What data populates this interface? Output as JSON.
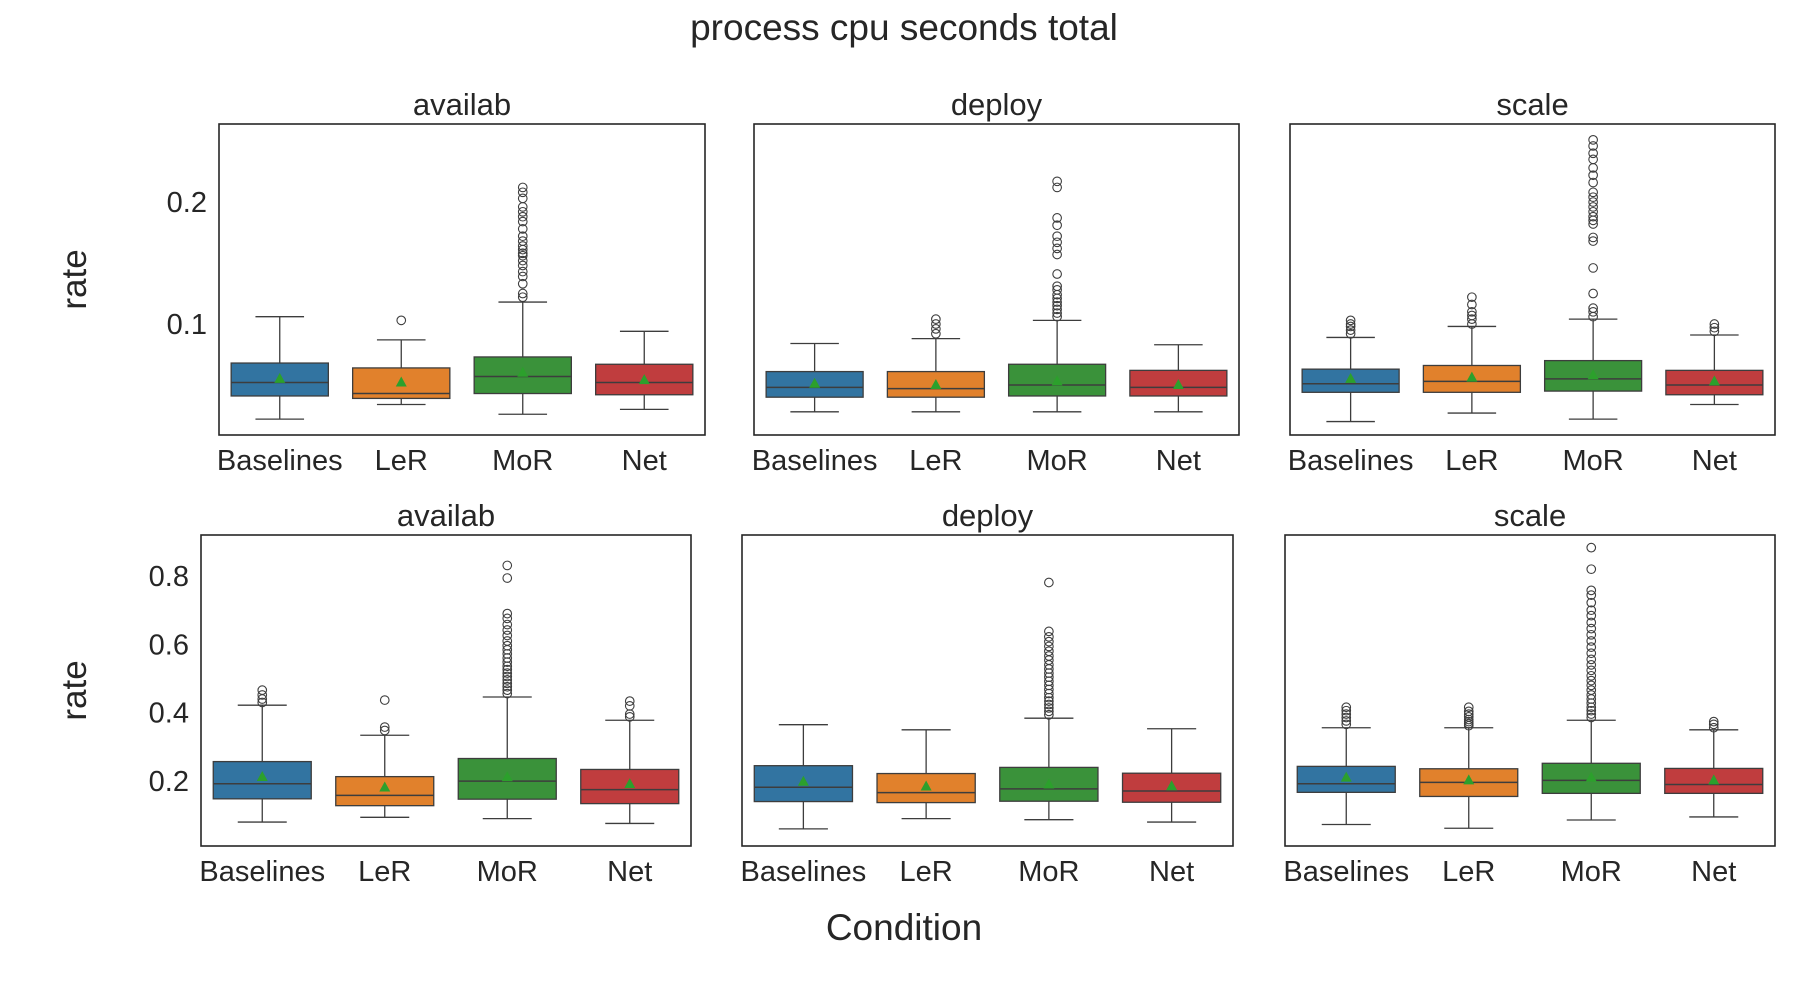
{
  "title": "process cpu seconds total",
  "xlabel": "Condition",
  "colors": {
    "Baselines": "#3274a1",
    "LeR": "#e1812c",
    "MoR": "#3a923a",
    "Net": "#c03d3e",
    "mean_marker": "#2ca02c",
    "median": "#3d3d3d",
    "frame": "#262626"
  },
  "chart_data": [
    {
      "type": "box",
      "row": 0,
      "col": 0,
      "title": "availab",
      "ylabel": "rate",
      "categories": [
        "Baselines",
        "LeR",
        "MoR",
        "Net"
      ],
      "ylim": [
        0.009,
        0.264
      ],
      "yticks": [
        0.1,
        0.2
      ],
      "boxes": [
        {
          "whislo": 0.022,
          "q1": 0.041,
          "med": 0.052,
          "q3": 0.068,
          "whishi": 0.106,
          "mean": 0.055,
          "fliers": []
        },
        {
          "whislo": 0.034,
          "q1": 0.039,
          "med": 0.043,
          "q3": 0.064,
          "whishi": 0.087,
          "mean": 0.052,
          "fliers": [
            0.103
          ]
        },
        {
          "whislo": 0.026,
          "q1": 0.043,
          "med": 0.057,
          "q3": 0.073,
          "whishi": 0.118,
          "mean": 0.06,
          "fliers": [
            0.122,
            0.125,
            0.133,
            0.139,
            0.143,
            0.148,
            0.152,
            0.156,
            0.158,
            0.161,
            0.164,
            0.168,
            0.172,
            0.178,
            0.184,
            0.188,
            0.192,
            0.196,
            0.203,
            0.208,
            0.212
          ]
        },
        {
          "whislo": 0.03,
          "q1": 0.042,
          "med": 0.052,
          "q3": 0.067,
          "whishi": 0.094,
          "mean": 0.054,
          "fliers": []
        }
      ]
    },
    {
      "type": "box",
      "row": 0,
      "col": 1,
      "title": "deploy",
      "ylabel": "",
      "categories": [
        "Baselines",
        "LeR",
        "MoR",
        "Net"
      ],
      "ylim": [
        0.009,
        0.264
      ],
      "yticks": [],
      "boxes": [
        {
          "whislo": 0.028,
          "q1": 0.04,
          "med": 0.048,
          "q3": 0.061,
          "whishi": 0.084,
          "mean": 0.051,
          "fliers": []
        },
        {
          "whislo": 0.028,
          "q1": 0.04,
          "med": 0.047,
          "q3": 0.061,
          "whishi": 0.088,
          "mean": 0.05,
          "fliers": [
            0.092,
            0.096,
            0.1,
            0.104
          ]
        },
        {
          "whislo": 0.028,
          "q1": 0.041,
          "med": 0.05,
          "q3": 0.067,
          "whishi": 0.103,
          "mean": 0.053,
          "fliers": [
            0.106,
            0.109,
            0.112,
            0.115,
            0.118,
            0.121,
            0.124,
            0.128,
            0.131,
            0.141,
            0.157,
            0.162,
            0.167,
            0.172,
            0.181,
            0.187,
            0.212,
            0.217
          ]
        },
        {
          "whislo": 0.028,
          "q1": 0.041,
          "med": 0.048,
          "q3": 0.062,
          "whishi": 0.083,
          "mean": 0.05,
          "fliers": []
        }
      ]
    },
    {
      "type": "box",
      "row": 0,
      "col": 2,
      "title": "scale",
      "ylabel": "",
      "categories": [
        "Baselines",
        "LeR",
        "MoR",
        "Net"
      ],
      "ylim": [
        0.009,
        0.264
      ],
      "yticks": [],
      "boxes": [
        {
          "whislo": 0.02,
          "q1": 0.044,
          "med": 0.051,
          "q3": 0.063,
          "whishi": 0.089,
          "mean": 0.055,
          "fliers": [
            0.092,
            0.095,
            0.098,
            0.1,
            0.103
          ]
        },
        {
          "whislo": 0.027,
          "q1": 0.044,
          "med": 0.053,
          "q3": 0.066,
          "whishi": 0.098,
          "mean": 0.056,
          "fliers": [
            0.1,
            0.104,
            0.107,
            0.11,
            0.116,
            0.122
          ]
        },
        {
          "whislo": 0.022,
          "q1": 0.045,
          "med": 0.055,
          "q3": 0.07,
          "whishi": 0.104,
          "mean": 0.058,
          "fliers": [
            0.106,
            0.11,
            0.113,
            0.125,
            0.146,
            0.168,
            0.171,
            0.182,
            0.185,
            0.188,
            0.192,
            0.196,
            0.2,
            0.204,
            0.208,
            0.216,
            0.222,
            0.228,
            0.235,
            0.24,
            0.246,
            0.251
          ]
        },
        {
          "whislo": 0.034,
          "q1": 0.042,
          "med": 0.05,
          "q3": 0.062,
          "whishi": 0.091,
          "mean": 0.053,
          "fliers": [
            0.094,
            0.097,
            0.1
          ]
        }
      ]
    },
    {
      "type": "box",
      "row": 1,
      "col": 0,
      "title": "availab",
      "ylabel": "rate",
      "categories": [
        "Baselines",
        "LeR",
        "MoR",
        "Net"
      ],
      "ylim": [
        0.01,
        0.92
      ],
      "yticks": [
        0.2,
        0.4,
        0.6,
        0.8
      ],
      "boxes": [
        {
          "whislo": 0.08,
          "q1": 0.148,
          "med": 0.192,
          "q3": 0.257,
          "whishi": 0.422,
          "mean": 0.212,
          "fliers": [
            0.43,
            0.44,
            0.452,
            0.466
          ]
        },
        {
          "whislo": 0.094,
          "q1": 0.128,
          "med": 0.158,
          "q3": 0.213,
          "whishi": 0.334,
          "mean": 0.181,
          "fliers": [
            0.348,
            0.358,
            0.437
          ]
        },
        {
          "whislo": 0.09,
          "q1": 0.147,
          "med": 0.2,
          "q3": 0.266,
          "whishi": 0.446,
          "mean": 0.211,
          "fliers": [
            0.456,
            0.466,
            0.476,
            0.486,
            0.496,
            0.506,
            0.516,
            0.526,
            0.536,
            0.548,
            0.56,
            0.572,
            0.584,
            0.596,
            0.61,
            0.626,
            0.642,
            0.658,
            0.676,
            0.69,
            0.794,
            0.831
          ]
        },
        {
          "whislo": 0.076,
          "q1": 0.134,
          "med": 0.175,
          "q3": 0.234,
          "whishi": 0.378,
          "mean": 0.191,
          "fliers": [
            0.388,
            0.396,
            0.42,
            0.434
          ]
        }
      ]
    },
    {
      "type": "box",
      "row": 1,
      "col": 1,
      "title": "deploy",
      "ylabel": "",
      "categories": [
        "Baselines",
        "LeR",
        "MoR",
        "Net"
      ],
      "ylim": [
        0.01,
        0.92
      ],
      "yticks": [],
      "boxes": [
        {
          "whislo": 0.06,
          "q1": 0.14,
          "med": 0.182,
          "q3": 0.245,
          "whishi": 0.365,
          "mean": 0.198,
          "fliers": []
        },
        {
          "whislo": 0.09,
          "q1": 0.137,
          "med": 0.166,
          "q3": 0.222,
          "whishi": 0.35,
          "mean": 0.184,
          "fliers": []
        },
        {
          "whislo": 0.087,
          "q1": 0.141,
          "med": 0.177,
          "q3": 0.24,
          "whishi": 0.384,
          "mean": 0.19,
          "fliers": [
            0.394,
            0.404,
            0.414,
            0.424,
            0.434,
            0.444,
            0.456,
            0.468,
            0.48,
            0.492,
            0.504,
            0.516,
            0.528,
            0.54,
            0.554,
            0.566,
            0.58,
            0.594,
            0.608,
            0.622,
            0.638,
            0.781
          ]
        },
        {
          "whislo": 0.08,
          "q1": 0.138,
          "med": 0.171,
          "q3": 0.223,
          "whishi": 0.353,
          "mean": 0.185,
          "fliers": []
        }
      ]
    },
    {
      "type": "box",
      "row": 1,
      "col": 2,
      "title": "scale",
      "ylabel": "",
      "categories": [
        "Baselines",
        "LeR",
        "MoR",
        "Net"
      ],
      "ylim": [
        0.01,
        0.92
      ],
      "yticks": [],
      "boxes": [
        {
          "whislo": 0.073,
          "q1": 0.167,
          "med": 0.192,
          "q3": 0.243,
          "whishi": 0.356,
          "mean": 0.21,
          "fliers": [
            0.366,
            0.376,
            0.386,
            0.396,
            0.406,
            0.416
          ]
        },
        {
          "whislo": 0.062,
          "q1": 0.155,
          "med": 0.196,
          "q3": 0.236,
          "whishi": 0.356,
          "mean": 0.202,
          "fliers": [
            0.362,
            0.368,
            0.374,
            0.38,
            0.388,
            0.396,
            0.404,
            0.416
          ]
        },
        {
          "whislo": 0.086,
          "q1": 0.164,
          "med": 0.202,
          "q3": 0.252,
          "whishi": 0.378,
          "mean": 0.21,
          "fliers": [
            0.386,
            0.396,
            0.406,
            0.416,
            0.428,
            0.44,
            0.452,
            0.466,
            0.48,
            0.494,
            0.508,
            0.524,
            0.54,
            0.556,
            0.574,
            0.592,
            0.61,
            0.628,
            0.646,
            0.664,
            0.684,
            0.7,
            0.722,
            0.744,
            0.758,
            0.82,
            0.883
          ]
        },
        {
          "whislo": 0.095,
          "q1": 0.164,
          "med": 0.19,
          "q3": 0.237,
          "whishi": 0.35,
          "mean": 0.202,
          "fliers": [
            0.356,
            0.366,
            0.374
          ]
        }
      ]
    }
  ]
}
